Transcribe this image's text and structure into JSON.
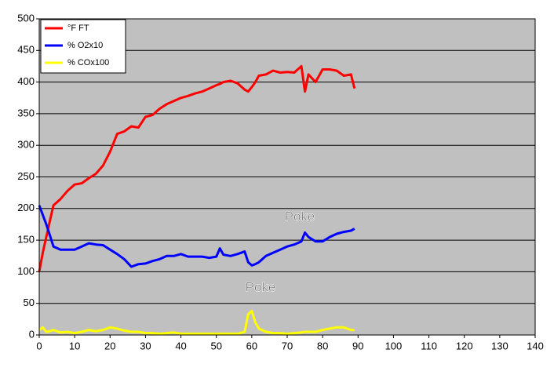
{
  "chart_data": {
    "type": "line",
    "x": [
      0,
      1,
      2,
      3,
      4,
      6,
      8,
      10,
      12,
      14,
      16,
      18,
      20,
      22,
      24,
      26,
      28,
      30,
      32,
      34,
      36,
      38,
      40,
      42,
      44,
      46,
      48,
      50,
      51,
      52,
      54,
      56,
      58,
      59,
      60,
      61,
      62,
      64,
      66,
      68,
      70,
      72,
      74,
      75,
      76,
      78,
      80,
      82,
      84,
      86,
      88,
      89
    ],
    "series": [
      {
        "name": "°F FT",
        "color": "#ff0000",
        "values": [
          100,
          130,
          155,
          180,
          205,
          215,
          228,
          238,
          240,
          248,
          255,
          268,
          290,
          318,
          322,
          330,
          328,
          345,
          348,
          358,
          365,
          370,
          375,
          378,
          382,
          385,
          390,
          395,
          397,
          400,
          402,
          398,
          388,
          385,
          392,
          400,
          410,
          412,
          418,
          415,
          416,
          415,
          425,
          385,
          412,
          400,
          420,
          420,
          418,
          410,
          412,
          390
        ]
      },
      {
        "name": "% O2x10",
        "color": "#0000ff",
        "values": [
          205,
          190,
          175,
          158,
          140,
          135,
          135,
          135,
          140,
          145,
          143,
          142,
          135,
          128,
          120,
          108,
          112,
          113,
          117,
          120,
          125,
          125,
          128,
          124,
          124,
          124,
          122,
          124,
          137,
          127,
          125,
          128,
          132,
          115,
          110,
          112,
          115,
          125,
          130,
          135,
          140,
          143,
          148,
          162,
          155,
          148,
          148,
          155,
          160,
          163,
          165,
          168
        ]
      },
      {
        "name": "% COx100",
        "color": "#ffff00",
        "values": [
          8,
          12,
          5,
          6,
          8,
          4,
          5,
          3,
          5,
          8,
          6,
          8,
          12,
          10,
          7,
          5,
          5,
          3,
          3,
          2,
          3,
          4,
          2,
          2,
          2,
          2,
          2,
          2,
          2,
          2,
          2,
          2,
          5,
          33,
          38,
          20,
          10,
          5,
          3,
          3,
          2,
          3,
          4,
          5,
          5,
          5,
          8,
          10,
          12,
          12,
          8,
          8
        ]
      }
    ],
    "xlim": [
      0,
      140
    ],
    "xticks": [
      0,
      10,
      20,
      30,
      40,
      50,
      60,
      70,
      80,
      90,
      100,
      110,
      120,
      130,
      140
    ],
    "ylim": [
      0,
      500
    ],
    "yticks": [
      0,
      50,
      100,
      150,
      200,
      250,
      300,
      350,
      400,
      450,
      500
    ],
    "grid": true,
    "legend": "top-left",
    "annotations": [
      {
        "text": "Poke"
      },
      {
        "text": "Poke"
      }
    ]
  }
}
